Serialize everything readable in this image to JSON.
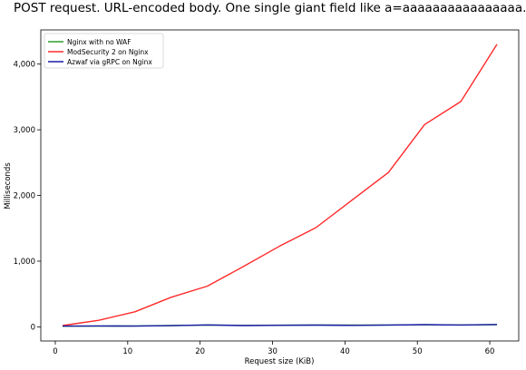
{
  "chart_data": {
    "type": "line",
    "title": "POST request. URL-encoded body. One single giant field like a=aaaaaaaaaaaaaaaa...",
    "xlabel": "Request size (KiB)",
    "ylabel": "Milliseconds",
    "xlim": [
      -2,
      64
    ],
    "ylim": [
      -215,
      4520
    ],
    "xticks": [
      0,
      10,
      20,
      30,
      40,
      50,
      60
    ],
    "yticks": [
      0,
      1000,
      2000,
      3000,
      4000
    ],
    "ytick_labels": [
      "0",
      "1,000",
      "2,000",
      "3,000",
      "4,000"
    ],
    "grid": false,
    "legend_position": "top-left",
    "series": [
      {
        "name": "Nginx with no WAF",
        "color": "#2ca02c",
        "x": [
          1,
          6,
          11,
          16,
          21,
          26,
          31,
          36,
          41,
          46,
          51,
          56,
          61
        ],
        "y": [
          10,
          12,
          14,
          20,
          28,
          22,
          25,
          28,
          26,
          28,
          32,
          30,
          34
        ]
      },
      {
        "name": "ModSecurity 2 on Nginx",
        "color": "#ff2a2a",
        "x": [
          1,
          6,
          11,
          16,
          21,
          26,
          31,
          36,
          41,
          46,
          51,
          56,
          61
        ],
        "y": [
          20,
          100,
          230,
          450,
          620,
          920,
          1230,
          1510,
          1930,
          2350,
          3080,
          3430,
          4300
        ]
      },
      {
        "name": "Azwaf via gRPC on Nginx",
        "color": "#1a1aa8",
        "x": [
          1,
          6,
          11,
          16,
          21,
          26,
          31,
          36,
          41,
          46,
          51,
          56,
          61
        ],
        "y": [
          12,
          14,
          12,
          18,
          30,
          20,
          24,
          26,
          22,
          28,
          34,
          28,
          36
        ]
      }
    ]
  }
}
